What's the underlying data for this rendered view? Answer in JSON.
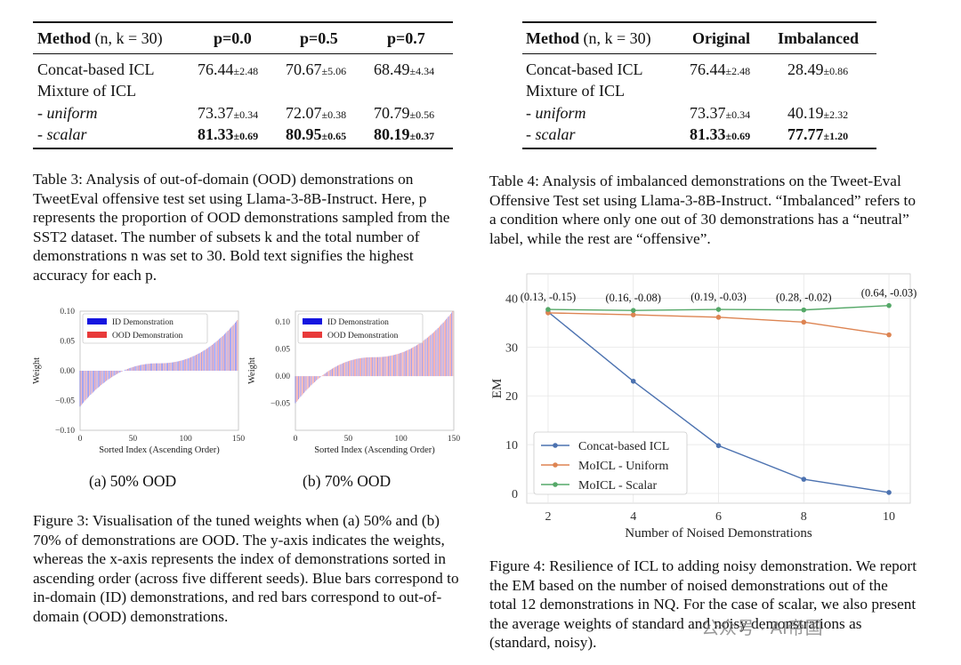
{
  "table3": {
    "header": {
      "method": "Method",
      "params": "(n, k = 30)",
      "col1": "p=0.0",
      "col2": "p=0.5",
      "col3": "p=0.7"
    },
    "rows": [
      {
        "name": "Concat-based ICL",
        "v1": "76.44",
        "s1": "±2.48",
        "v2": "70.67",
        "s2": "±5.06",
        "v3": "68.49",
        "s3": "±4.34"
      },
      {
        "name": "Mixture of ICL"
      },
      {
        "name": "- uniform",
        "v1": "73.37",
        "s1": "±0.34",
        "v2": "72.07",
        "s2": "±0.38",
        "v3": "70.79",
        "s3": "±0.56"
      },
      {
        "name": "- scalar",
        "v1": "81.33",
        "s1": "±0.69",
        "v2": "80.95",
        "s2": "±0.65",
        "v3": "80.19",
        "s3": "±0.37"
      }
    ],
    "caption": "Table 3: Analysis of out-of-domain (OOD) demonstrations on TweetEval offensive test set using Llama-3-8B-Instruct. Here, p represents the proportion of OOD demonstrations sampled from the SST2 dataset. The number of subsets k and the total number of demonstrations n was set to 30. Bold text signifies the highest accuracy for each p."
  },
  "table4": {
    "header": {
      "method": "Method",
      "params": "(n, k = 30)",
      "col1": "Original",
      "col2": "Imbalanced"
    },
    "rows": [
      {
        "name": "Concat-based ICL",
        "v1": "76.44",
        "s1": "±2.48",
        "v2": "28.49",
        "s2": "±0.86"
      },
      {
        "name": "Mixture of ICL"
      },
      {
        "name": "- uniform",
        "v1": "73.37",
        "s1": "±0.34",
        "v2": "40.19",
        "s2": "±2.32"
      },
      {
        "name": "- scalar",
        "v1": "81.33",
        "s1": "±0.69",
        "v2": "77.77",
        "s2": "±1.20"
      }
    ],
    "caption": "Table 4: Analysis of imbalanced demonstrations on the Tweet-Eval Offensive Test set using Llama-3-8B-Instruct. “Imbalanced” refers to a condition where only one out of 30 demonstrations has a “neutral” label, while the rest are “offensive”."
  },
  "figure3": {
    "subcaption_a": "(a) 50% OOD",
    "subcaption_b": "(b) 70% OOD",
    "caption": "Figure 3: Visualisation of the tuned weights when (a) 50% and (b) 70% of demonstrations are OOD. The y-axis indicates the weights, whereas the x-axis represents the index of demonstrations sorted in ascending order (across five different seeds). Blue bars correspond to in-domain (ID) demonstrations, and red bars correspond to out-of-domain (OOD) demonstrations."
  },
  "figure4": {
    "caption": "Figure 4: Resilience of ICL to adding noisy demonstration. We report the EM based on the number of noised demonstrations out of the total 12 demonstrations in NQ. For the case of scalar, we also present the average weights of standard and noisy demonstrations as (standard, noisy)."
  },
  "watermark": "公众号 · AI帝国",
  "chart_data": [
    {
      "type": "bar",
      "xlabel": "Sorted Index (Ascending Order)",
      "ylabel": "Weight",
      "xlim": [
        0,
        150
      ],
      "ylim": [
        -0.1,
        0.1
      ],
      "xticks": [
        "0",
        "50",
        "100",
        "150"
      ],
      "yticks": [
        "0.10",
        "0.05",
        "0.00",
        "−0.05",
        "−0.10"
      ],
      "legend": [
        "ID Demonstration",
        "OOD Demonstration"
      ],
      "legend_position": "top-left",
      "colors": {
        "id": "#1515e0",
        "ood": "#e83a3a"
      },
      "series": [
        {
          "name": "ID Demonstration",
          "range": [
            -0.06,
            0.085
          ]
        },
        {
          "name": "OOD Demonstration",
          "range": [
            -0.06,
            0.085
          ]
        }
      ]
    },
    {
      "type": "bar",
      "xlabel": "Sorted Index (Ascending Order)",
      "ylabel": "Weight",
      "xlim": [
        0,
        150
      ],
      "ylim": [
        -0.1,
        0.12
      ],
      "xticks": [
        "0",
        "50",
        "100",
        "150"
      ],
      "yticks": [
        "0.10",
        "0.05",
        "0.00",
        "−0.05"
      ],
      "legend": [
        "ID Demonstration",
        "OOD Demonstration"
      ],
      "legend_position": "top-left",
      "colors": {
        "id": "#1515e0",
        "ood": "#e83a3a"
      },
      "series": [
        {
          "name": "ID Demonstration",
          "range": [
            -0.05,
            0.12
          ]
        },
        {
          "name": "OOD Demonstration",
          "range": [
            -0.05,
            0.12
          ]
        }
      ]
    },
    {
      "type": "line",
      "xlabel": "Number of Noised Demonstrations",
      "ylabel": "EM",
      "x": [
        2,
        4,
        6,
        8,
        10
      ],
      "xlim": [
        1.5,
        10.5
      ],
      "ylim": [
        -2,
        45
      ],
      "xticks": [
        "2",
        "4",
        "6",
        "8",
        "10"
      ],
      "yticks": [
        "0",
        "10",
        "20",
        "30",
        "40"
      ],
      "grid": true,
      "legend_position": "bottom-left",
      "series": [
        {
          "name": "Concat-based ICL",
          "color": "#4c72b0",
          "values": [
            37.2,
            23.0,
            9.8,
            2.9,
            0.2
          ]
        },
        {
          "name": "MoICL - Uniform",
          "color": "#dd8452",
          "values": [
            37.0,
            36.6,
            36.1,
            35.1,
            32.5
          ]
        },
        {
          "name": "MoICL - Scalar",
          "color": "#55a868",
          "values": [
            37.7,
            37.5,
            37.7,
            37.6,
            38.5
          ]
        }
      ],
      "annotations": [
        "(0.13, -0.15)",
        "(0.16, -0.08)",
        "(0.19, -0.03)",
        "(0.28, -0.02)",
        "(0.64, -0.03)"
      ]
    }
  ]
}
